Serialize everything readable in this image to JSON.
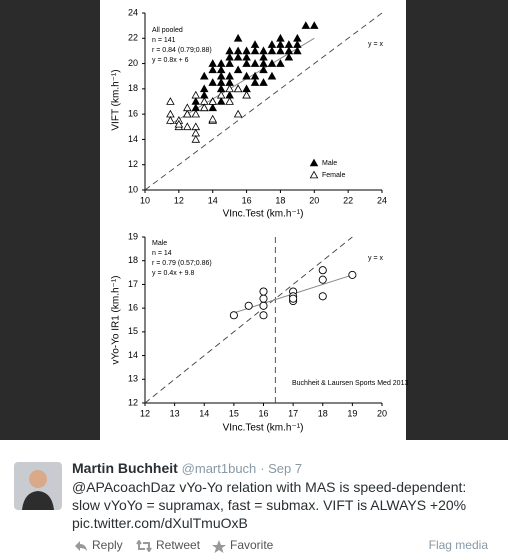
{
  "chart_data": [
    {
      "type": "scatter",
      "annotations": [
        "All pooled",
        "n = 141",
        "r = 0.84 (0.79;0.88)",
        "y = 0.8x + 6"
      ],
      "identity_label": "y = x",
      "x_label": "VInc.Test (km.h⁻¹)",
      "y_label": "VIFT (km.h⁻¹)",
      "xlim": [
        10,
        24
      ],
      "ylim": [
        10,
        24
      ],
      "xticks": [
        10,
        12,
        14,
        16,
        18,
        20,
        22,
        24
      ],
      "yticks": [
        10,
        12,
        14,
        16,
        18,
        20,
        22,
        24
      ],
      "fit": {
        "x": [
          11.5,
          20
        ],
        "y": [
          15.2,
          22
        ]
      },
      "series": [
        {
          "name": "Male",
          "color": "#000000",
          "marker": "triangle",
          "filled": true,
          "x": [
            13.5,
            13.5,
            13.5,
            13.5,
            14,
            14,
            14,
            14,
            14,
            14.5,
            14.5,
            14.5,
            14.5,
            14.5,
            15,
            15,
            15,
            15,
            15,
            15,
            15.5,
            15.5,
            15.5,
            15.5,
            15.5,
            16,
            16,
            16,
            16,
            16,
            16,
            16.5,
            16.5,
            16.5,
            16.5,
            16.5,
            17,
            17,
            17,
            17,
            17,
            17.5,
            17.5,
            17.5,
            17.5,
            18,
            18,
            18,
            18,
            18.5,
            18.5,
            18.5,
            19,
            19,
            19,
            19.5,
            20,
            13,
            13,
            14.5,
            12.5
          ],
          "values": [
            17.5,
            18,
            19,
            16.5,
            18.5,
            19.5,
            20,
            17,
            16.5,
            18,
            19,
            20,
            19.5,
            17,
            18.5,
            19,
            20,
            20.5,
            21,
            17.5,
            18,
            19.5,
            20.5,
            21,
            22,
            18,
            19,
            20,
            20.5,
            21,
            17.5,
            19,
            20,
            21,
            21.5,
            18.5,
            19.5,
            20,
            21,
            20.5,
            18.5,
            20,
            21,
            21.5,
            19,
            20,
            21,
            21.5,
            22,
            21,
            21.5,
            20.5,
            22,
            21.5,
            21,
            23,
            23,
            16.5,
            17,
            18.5,
            16
          ]
        },
        {
          "name": "Female",
          "color": "#000000",
          "marker": "triangle",
          "filled": false,
          "x": [
            11.5,
            11.5,
            11.5,
            12,
            12,
            12.5,
            12.5,
            12.5,
            13,
            13,
            13,
            13,
            13.5,
            13.5,
            14,
            14,
            14.5,
            15,
            15,
            15.5,
            15.5,
            16,
            13,
            14,
            12
          ],
          "values": [
            17,
            16,
            15.5,
            15,
            15.5,
            16,
            16.5,
            15,
            15,
            14.5,
            14,
            16,
            17,
            16.5,
            15.5,
            15.6,
            17.5,
            17,
            18,
            18,
            16,
            17.5,
            17.5,
            17,
            15.2
          ]
        }
      ]
    },
    {
      "type": "scatter",
      "annotations": [
        "Male",
        "n = 14",
        "r = 0.79 (0.57;0.86)",
        "y = 0.4x + 9.8"
      ],
      "identity_label": "y = x",
      "source": "Buchheit & Laursen Sports Med 2013",
      "x_label": "VInc.Test (km.h⁻¹)",
      "y_label": "vYo-Yo IR1 (km.h⁻¹)",
      "xlim": [
        12,
        20
      ],
      "ylim": [
        12,
        19
      ],
      "xticks": [
        12,
        13,
        14,
        15,
        16,
        17,
        18,
        19,
        20
      ],
      "yticks": [
        12,
        13,
        14,
        15,
        16,
        17,
        18,
        19
      ],
      "vline": 16.4,
      "fit": {
        "x": [
          15,
          19
        ],
        "y": [
          15.8,
          17.4
        ]
      },
      "series": [
        {
          "color": "#000000",
          "marker": "circle",
          "filled": false,
          "x": [
            15,
            15.5,
            16,
            16,
            16,
            16,
            17,
            17,
            17,
            17,
            18,
            18,
            18,
            19
          ],
          "values": [
            15.7,
            16.1,
            16.1,
            16.4,
            16.7,
            15.7,
            16.7,
            16.5,
            16.3,
            16.4,
            17.6,
            17.2,
            16.5,
            17.4
          ]
        }
      ]
    }
  ],
  "tweet": {
    "name": "Martin Buchheit",
    "handle": "@mart1buch",
    "time": "· Sep 7",
    "lines": [
      "@APAcoachDaz vYo-Yo relation with MAS is speed-dependent:",
      "slow vYoYo = supramax, fast = submax. VIFT is ALWAYS +20%",
      "pic.twitter.com/dXulTmuOxB"
    ],
    "actions": [
      "Reply",
      "Retweet",
      "Favorite"
    ],
    "flag": "Flag media"
  }
}
